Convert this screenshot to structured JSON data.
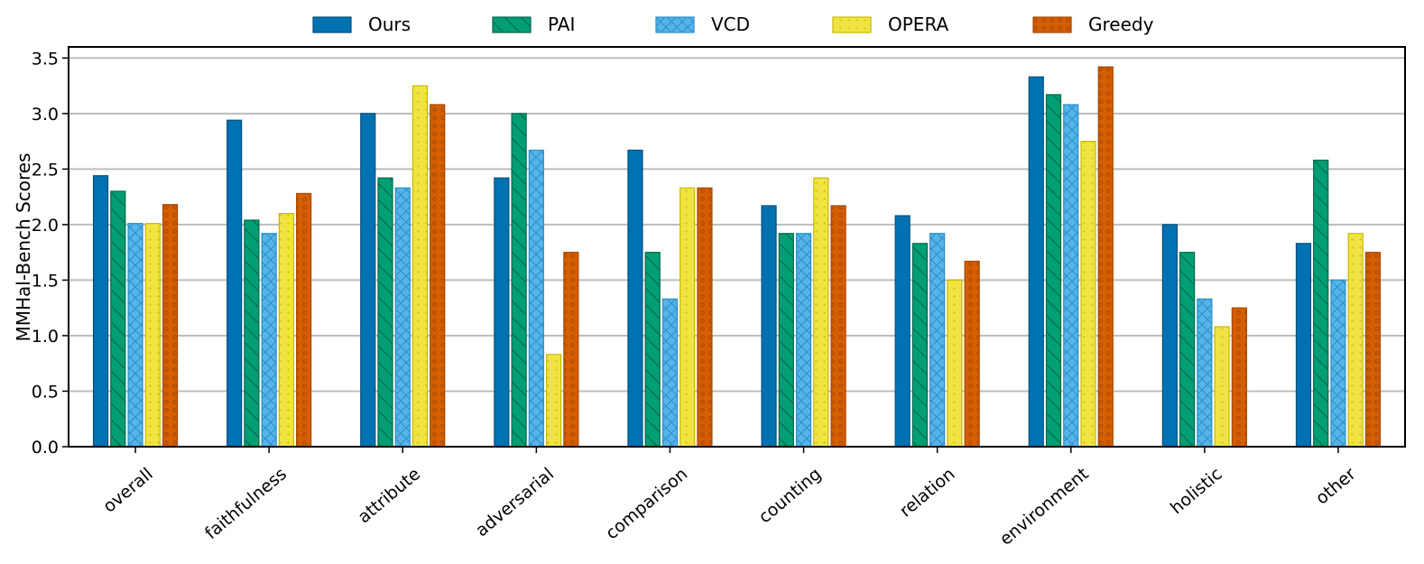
{
  "chart_data": {
    "type": "bar",
    "title": "",
    "xlabel": "",
    "ylabel": "MMHal-Bench Scores",
    "ylim": [
      0,
      3.6
    ],
    "yticks": [
      0.0,
      0.5,
      1.0,
      1.5,
      2.0,
      2.5,
      3.0,
      3.5
    ],
    "ytick_labels": [
      "0.0",
      "0.5",
      "1.0",
      "1.5",
      "2.0",
      "2.5",
      "3.0",
      "3.5"
    ],
    "grid": true,
    "legend_position": "top-center",
    "categories": [
      "overall",
      "faithfulness",
      "attribute",
      "adversarial",
      "comparison",
      "counting",
      "relation",
      "environment",
      "holistic",
      "other"
    ],
    "series": [
      {
        "name": "Ours",
        "fill": "#0072B2",
        "edge": "#004f7c",
        "pattern": "none",
        "values": [
          2.44,
          2.94,
          3.0,
          2.42,
          2.67,
          2.17,
          2.08,
          3.33,
          2.0,
          1.83
        ]
      },
      {
        "name": "PAI",
        "fill": "#009E73",
        "edge": "#00664a",
        "pattern": "diag",
        "values": [
          2.3,
          2.04,
          2.42,
          3.0,
          1.75,
          1.92,
          1.83,
          3.17,
          1.75,
          2.58
        ]
      },
      {
        "name": "VCD",
        "fill": "#56B4E9",
        "edge": "#2a8fc8",
        "pattern": "cross",
        "values": [
          2.01,
          1.92,
          2.33,
          2.67,
          1.33,
          1.92,
          1.92,
          3.08,
          1.33,
          1.5
        ]
      },
      {
        "name": "OPERA",
        "fill": "#F0E442",
        "edge": "#c9b800",
        "pattern": "dots",
        "values": [
          2.01,
          2.1,
          3.25,
          0.83,
          2.33,
          2.42,
          1.5,
          2.75,
          1.08,
          1.92
        ]
      },
      {
        "name": "Greedy",
        "fill": "#D55E00",
        "edge": "#a64700",
        "pattern": "circles",
        "values": [
          2.18,
          2.28,
          3.08,
          1.75,
          2.33,
          2.17,
          1.67,
          3.42,
          1.25,
          1.75
        ]
      }
    ]
  }
}
